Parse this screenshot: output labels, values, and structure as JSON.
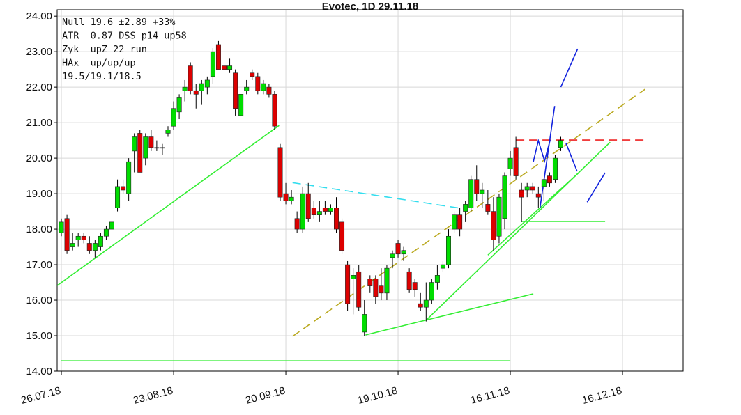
{
  "chart_data": {
    "type": "candlestick",
    "title": "Evotec, 1D 29.11.18",
    "info_lines": [
      "Null 19.6 ±2.89 +33%",
      "ATR  0.87 DSS p14 up58",
      "Zyk  upZ 22 run",
      "HAx  up/up/up",
      "19.5/19.1/18.5"
    ],
    "up_color": "#00dd00",
    "down_color": "#dd0000",
    "grid": true,
    "xlim": [
      -0.75,
      110.8
    ],
    "xticks": [
      {
        "value": 0,
        "label": "26.07.18"
      },
      {
        "value": 20,
        "label": "23.08.18"
      },
      {
        "value": 40,
        "label": "20.09.18"
      },
      {
        "value": 60,
        "label": "19.10.18"
      },
      {
        "value": 80,
        "label": "16.11.18"
      },
      {
        "value": 100,
        "label": "16.12.18"
      }
    ],
    "ylim": [
      14,
      24.18
    ],
    "yticks": [
      {
        "value": 14,
        "label": "14.00"
      },
      {
        "value": 15,
        "label": "15.00"
      },
      {
        "value": 16,
        "label": "16.00"
      },
      {
        "value": 17,
        "label": "17.00"
      },
      {
        "value": 18,
        "label": "18.00"
      },
      {
        "value": 19,
        "label": "19.00"
      },
      {
        "value": 20,
        "label": "20.00"
      },
      {
        "value": 21,
        "label": "21.00"
      },
      {
        "value": 22,
        "label": "22.00"
      },
      {
        "value": 23,
        "label": "23.00"
      },
      {
        "value": 24,
        "label": "24.00"
      }
    ],
    "open": [
      17.9,
      18.3,
      17.5,
      17.7,
      17.8,
      17.6,
      17.4,
      17.5,
      17.8,
      18.0,
      18.6,
      19.2,
      19.0,
      20.2,
      20.7,
      20.0,
      20.6,
      20.3,
      20.3,
      20.7,
      20.9,
      21.3,
      21.9,
      22.6,
      21.9,
      21.9,
      22.0,
      22.3,
      23.2,
      22.6,
      22.5,
      22.4,
      21.2,
      21.9,
      22.4,
      22.3,
      21.9,
      22.0,
      21.8,
      20.3,
      19.0,
      18.8,
      18.3,
      18.0,
      19.0,
      18.6,
      18.4,
      18.6,
      18.5,
      18.6,
      18.2,
      17.0,
      16.6,
      16.8,
      15.1,
      16.6,
      16.6,
      16.4,
      16.2,
      17.2,
      17.6,
      17.3,
      16.8,
      16.5,
      15.9,
      15.8,
      16.0,
      16.5,
      16.9,
      17.0,
      18.0,
      18.4,
      18.5,
      18.6,
      19.4,
      19.0,
      18.7,
      18.5,
      17.8,
      18.3,
      19.7,
      20.3,
      19.1,
      19.1,
      19.2,
      19.0,
      19.2,
      19.5,
      19.4,
      20.3
    ],
    "high": [
      18.3,
      18.4,
      17.9,
      17.9,
      17.9,
      17.8,
      17.7,
      17.9,
      18.1,
      18.3,
      19.4,
      19.4,
      20.0,
      20.7,
      20.8,
      20.7,
      20.8,
      20.5,
      20.4,
      20.9,
      21.6,
      21.8,
      22.2,
      22.7,
      22.1,
      22.2,
      22.3,
      23.1,
      23.3,
      23.0,
      22.8,
      22.5,
      21.8,
      22.2,
      22.5,
      22.4,
      22.2,
      22.1,
      21.9,
      20.4,
      19.3,
      19.1,
      18.5,
      19.2,
      19.3,
      18.8,
      18.8,
      18.8,
      18.7,
      18.9,
      18.3,
      17.1,
      16.9,
      17.0,
      16.0,
      16.7,
      16.7,
      16.9,
      17.0,
      17.4,
      17.7,
      17.5,
      16.9,
      16.6,
      16.2,
      16.5,
      16.6,
      17.0,
      17.1,
      18.0,
      18.5,
      18.6,
      18.8,
      19.5,
      19.8,
      19.3,
      19.1,
      18.9,
      19.0,
      19.6,
      20.2,
      20.6,
      19.3,
      19.3,
      19.3,
      19.2,
      19.4,
      19.6,
      20.1,
      20.6
    ],
    "low": [
      17.8,
      17.3,
      17.4,
      17.5,
      17.6,
      17.3,
      17.2,
      17.4,
      17.7,
      17.9,
      18.5,
      19.0,
      18.8,
      19.6,
      19.6,
      19.8,
      20.2,
      20.2,
      20.1,
      20.6,
      20.8,
      21.1,
      21.6,
      21.8,
      21.4,
      21.5,
      21.8,
      22.1,
      22.5,
      22.3,
      22.4,
      21.2,
      21.2,
      21.8,
      22.2,
      21.8,
      21.8,
      21.7,
      20.8,
      18.8,
      18.7,
      18.7,
      17.9,
      17.9,
      18.2,
      18.3,
      18.2,
      18.4,
      18.4,
      17.9,
      17.3,
      15.7,
      15.6,
      15.7,
      15.0,
      16.2,
      15.9,
      16.0,
      16.0,
      16.9,
      17.2,
      17.1,
      16.2,
      16.1,
      15.7,
      15.4,
      15.9,
      16.3,
      16.8,
      16.9,
      17.9,
      17.8,
      18.2,
      18.5,
      18.8,
      18.6,
      18.4,
      17.4,
      17.6,
      18.0,
      19.5,
      19.4,
      18.2,
      18.9,
      19.0,
      18.6,
      18.8,
      19.2,
      19.3,
      20.2
    ],
    "close": [
      18.2,
      17.4,
      17.6,
      17.8,
      17.7,
      17.4,
      17.6,
      17.8,
      18.0,
      18.2,
      19.2,
      19.1,
      19.9,
      20.6,
      19.6,
      20.6,
      20.3,
      20.3,
      20.3,
      20.8,
      21.4,
      21.7,
      22.0,
      21.9,
      21.8,
      22.1,
      22.2,
      23.0,
      22.5,
      22.5,
      22.6,
      21.4,
      21.8,
      22.0,
      22.3,
      21.9,
      22.1,
      21.8,
      20.9,
      18.9,
      18.8,
      18.9,
      18.0,
      19.0,
      18.3,
      18.4,
      18.5,
      18.5,
      18.6,
      18.0,
      17.4,
      15.9,
      16.7,
      15.8,
      15.6,
      16.4,
      16.1,
      16.2,
      16.9,
      17.3,
      17.3,
      17.4,
      16.3,
      16.3,
      15.8,
      16.0,
      16.5,
      16.7,
      17.0,
      17.8,
      18.4,
      18.0,
      18.7,
      19.4,
      19.0,
      19.1,
      18.5,
      17.7,
      18.9,
      19.5,
      20.0,
      19.5,
      18.9,
      19.2,
      19.1,
      18.9,
      19.4,
      19.3,
      20.0,
      20.5
    ],
    "trendlines": [
      {
        "color": "#33ee33",
        "dash": false,
        "x": [
          -0.75,
          38.8
        ],
        "y": [
          16.41,
          20.92
        ]
      },
      {
        "color": "#33ee33",
        "dash": false,
        "x": [
          0,
          80
        ],
        "y": [
          14.29,
          14.29
        ]
      },
      {
        "color": "#33ee33",
        "dash": false,
        "x": [
          54.2,
          84.1
        ],
        "y": [
          15.02,
          16.18
        ]
      },
      {
        "color": "#33ee33",
        "dash": false,
        "x": [
          65.1,
          97.8
        ],
        "y": [
          15.45,
          20.45
        ]
      },
      {
        "color": "#33ee33",
        "dash": false,
        "x": [
          76,
          92.2
        ],
        "y": [
          17.27,
          19.59
        ]
      },
      {
        "color": "#33ee33",
        "dash": false,
        "x": [
          82,
          96.9
        ],
        "y": [
          18.22,
          18.22
        ]
      },
      {
        "color": "#bbaa22",
        "dash": true,
        "x": [
          41.2,
          104
        ],
        "y": [
          14.98,
          21.94
        ]
      },
      {
        "color": "#33ddee",
        "dash": true,
        "x": [
          41.2,
          71.1
        ],
        "y": [
          19.31,
          18.59
        ]
      },
      {
        "color": "#ee2222",
        "dash": true,
        "x": [
          81,
          104.3
        ],
        "y": [
          20.51,
          20.51
        ]
      },
      {
        "color": "#1122dd",
        "dash": false,
        "x": [
          85.3,
          87.9
        ],
        "y": [
          18.61,
          21.47
        ]
      },
      {
        "color": "#1122dd",
        "dash": false,
        "x": [
          84.1,
          85.0,
          86.1,
          87.1
        ],
        "y": [
          19.9,
          20.49,
          19.92,
          20.51
        ]
      },
      {
        "color": "#1122dd",
        "dash": false,
        "x": [
          89.0,
          92.0
        ],
        "y": [
          22.0,
          23.08
        ]
      },
      {
        "color": "#1122dd",
        "dash": false,
        "x": [
          89.9,
          91.9
        ],
        "y": [
          20.43,
          19.63
        ]
      },
      {
        "color": "#1122dd",
        "dash": false,
        "x": [
          93.7,
          96.9
        ],
        "y": [
          18.76,
          19.59
        ]
      }
    ]
  }
}
